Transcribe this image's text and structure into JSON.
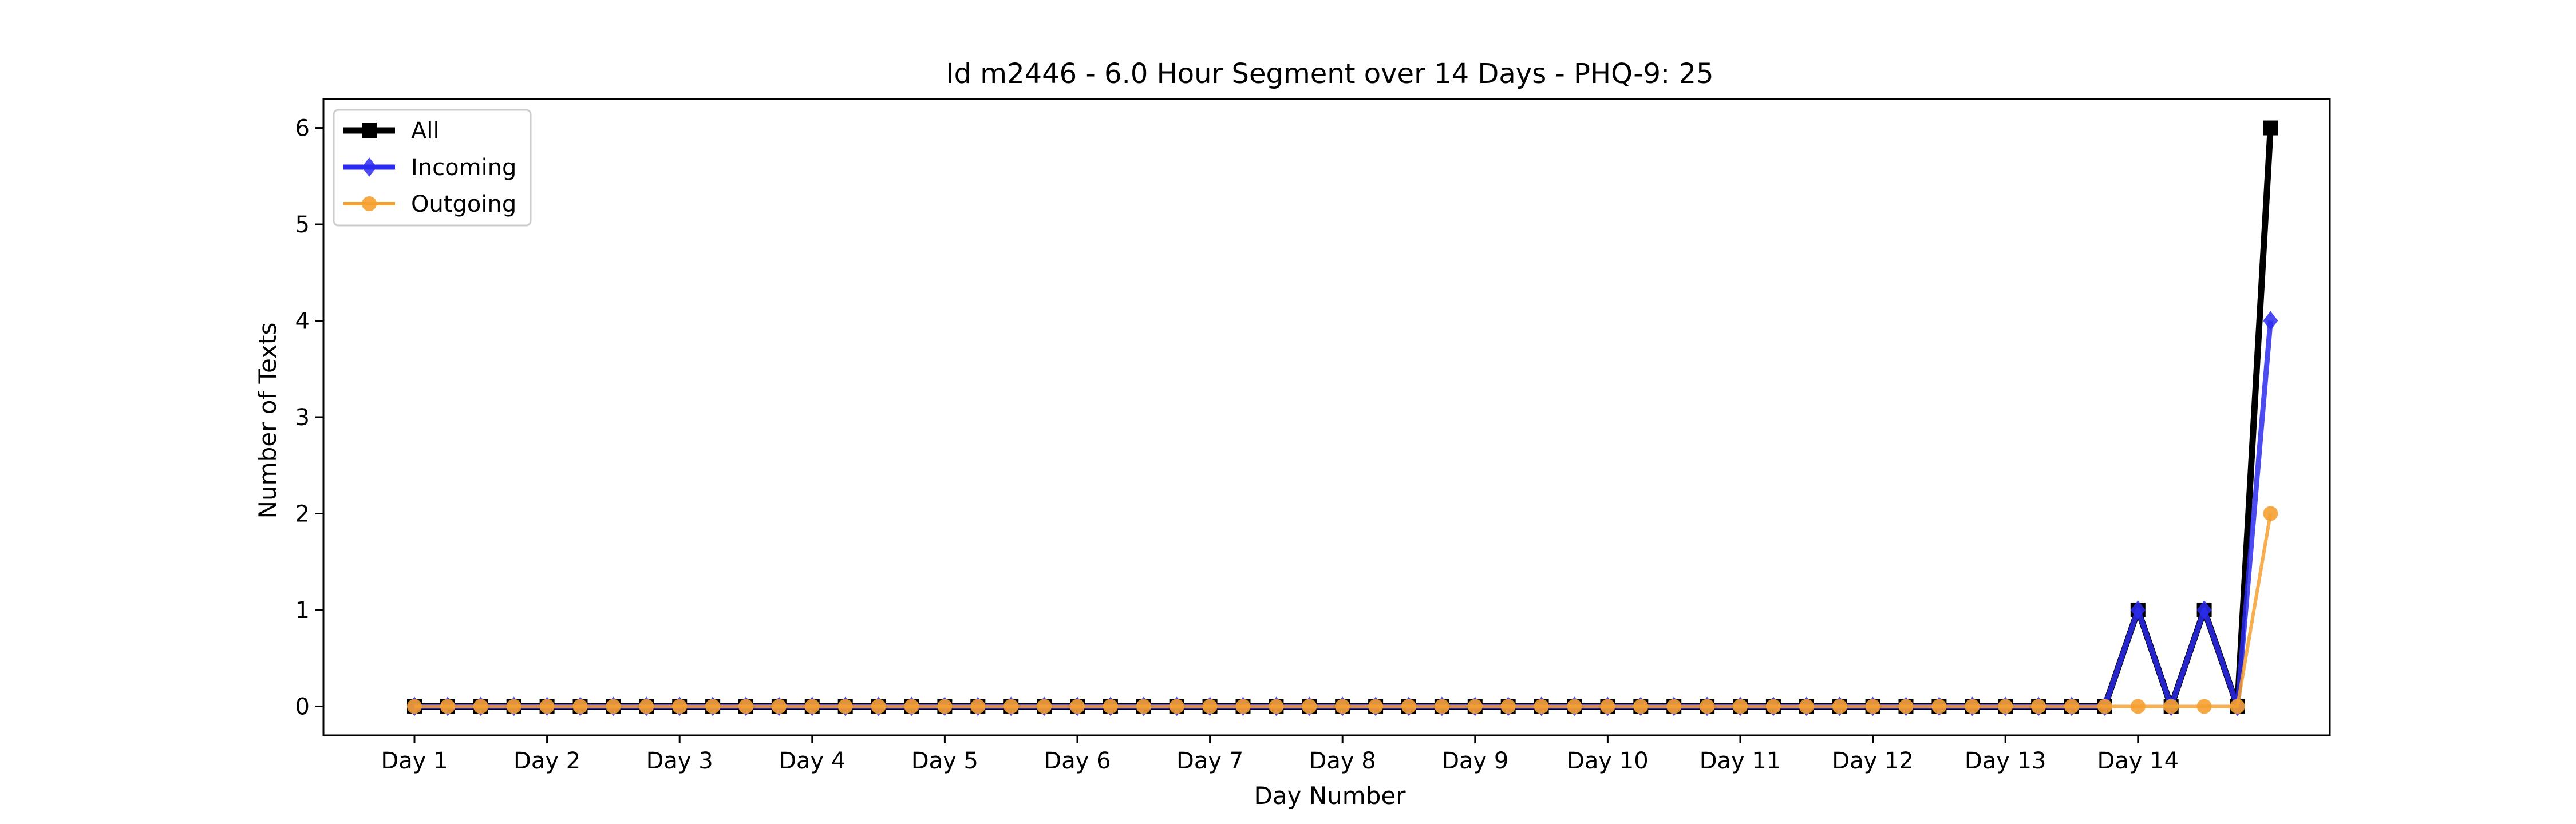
{
  "chart_data": {
    "type": "line",
    "title": "Id m2446 - 6.0 Hour Segment over 14 Days - PHQ-9: 25",
    "xlabel": "Day Number",
    "ylabel": "Number of Texts",
    "x_tick_labels": [
      "Day 1",
      "Day 2",
      "Day 3",
      "Day 4",
      "Day 5",
      "Day 6",
      "Day 7",
      "Day 8",
      "Day 9",
      "Day 10",
      "Day 11",
      "Day 12",
      "Day 13",
      "Day 14"
    ],
    "y_ticks": [
      0,
      1,
      2,
      3,
      4,
      5,
      6
    ],
    "ylim": [
      -0.3,
      6.3
    ],
    "points_per_day": 4,
    "grid": false,
    "legend_position": "top-left",
    "series": [
      {
        "name": "All",
        "color": "#000000",
        "marker": "square",
        "values": [
          0,
          0,
          0,
          0,
          0,
          0,
          0,
          0,
          0,
          0,
          0,
          0,
          0,
          0,
          0,
          0,
          0,
          0,
          0,
          0,
          0,
          0,
          0,
          0,
          0,
          0,
          0,
          0,
          0,
          0,
          0,
          0,
          0,
          0,
          0,
          0,
          0,
          0,
          0,
          0,
          0,
          0,
          0,
          0,
          0,
          0,
          0,
          0,
          0,
          0,
          0,
          0,
          1,
          0,
          1,
          0,
          6
        ]
      },
      {
        "name": "Incoming",
        "color": "#2b2bee",
        "marker": "diamond",
        "values": [
          0,
          0,
          0,
          0,
          0,
          0,
          0,
          0,
          0,
          0,
          0,
          0,
          0,
          0,
          0,
          0,
          0,
          0,
          0,
          0,
          0,
          0,
          0,
          0,
          0,
          0,
          0,
          0,
          0,
          0,
          0,
          0,
          0,
          0,
          0,
          0,
          0,
          0,
          0,
          0,
          0,
          0,
          0,
          0,
          0,
          0,
          0,
          0,
          0,
          0,
          0,
          0,
          1,
          0,
          1,
          0,
          4
        ]
      },
      {
        "name": "Outgoing",
        "color": "#f5a030",
        "marker": "circle",
        "values": [
          0,
          0,
          0,
          0,
          0,
          0,
          0,
          0,
          0,
          0,
          0,
          0,
          0,
          0,
          0,
          0,
          0,
          0,
          0,
          0,
          0,
          0,
          0,
          0,
          0,
          0,
          0,
          0,
          0,
          0,
          0,
          0,
          0,
          0,
          0,
          0,
          0,
          0,
          0,
          0,
          0,
          0,
          0,
          0,
          0,
          0,
          0,
          0,
          0,
          0,
          0,
          0,
          0,
          0,
          0,
          0,
          2
        ]
      }
    ]
  }
}
